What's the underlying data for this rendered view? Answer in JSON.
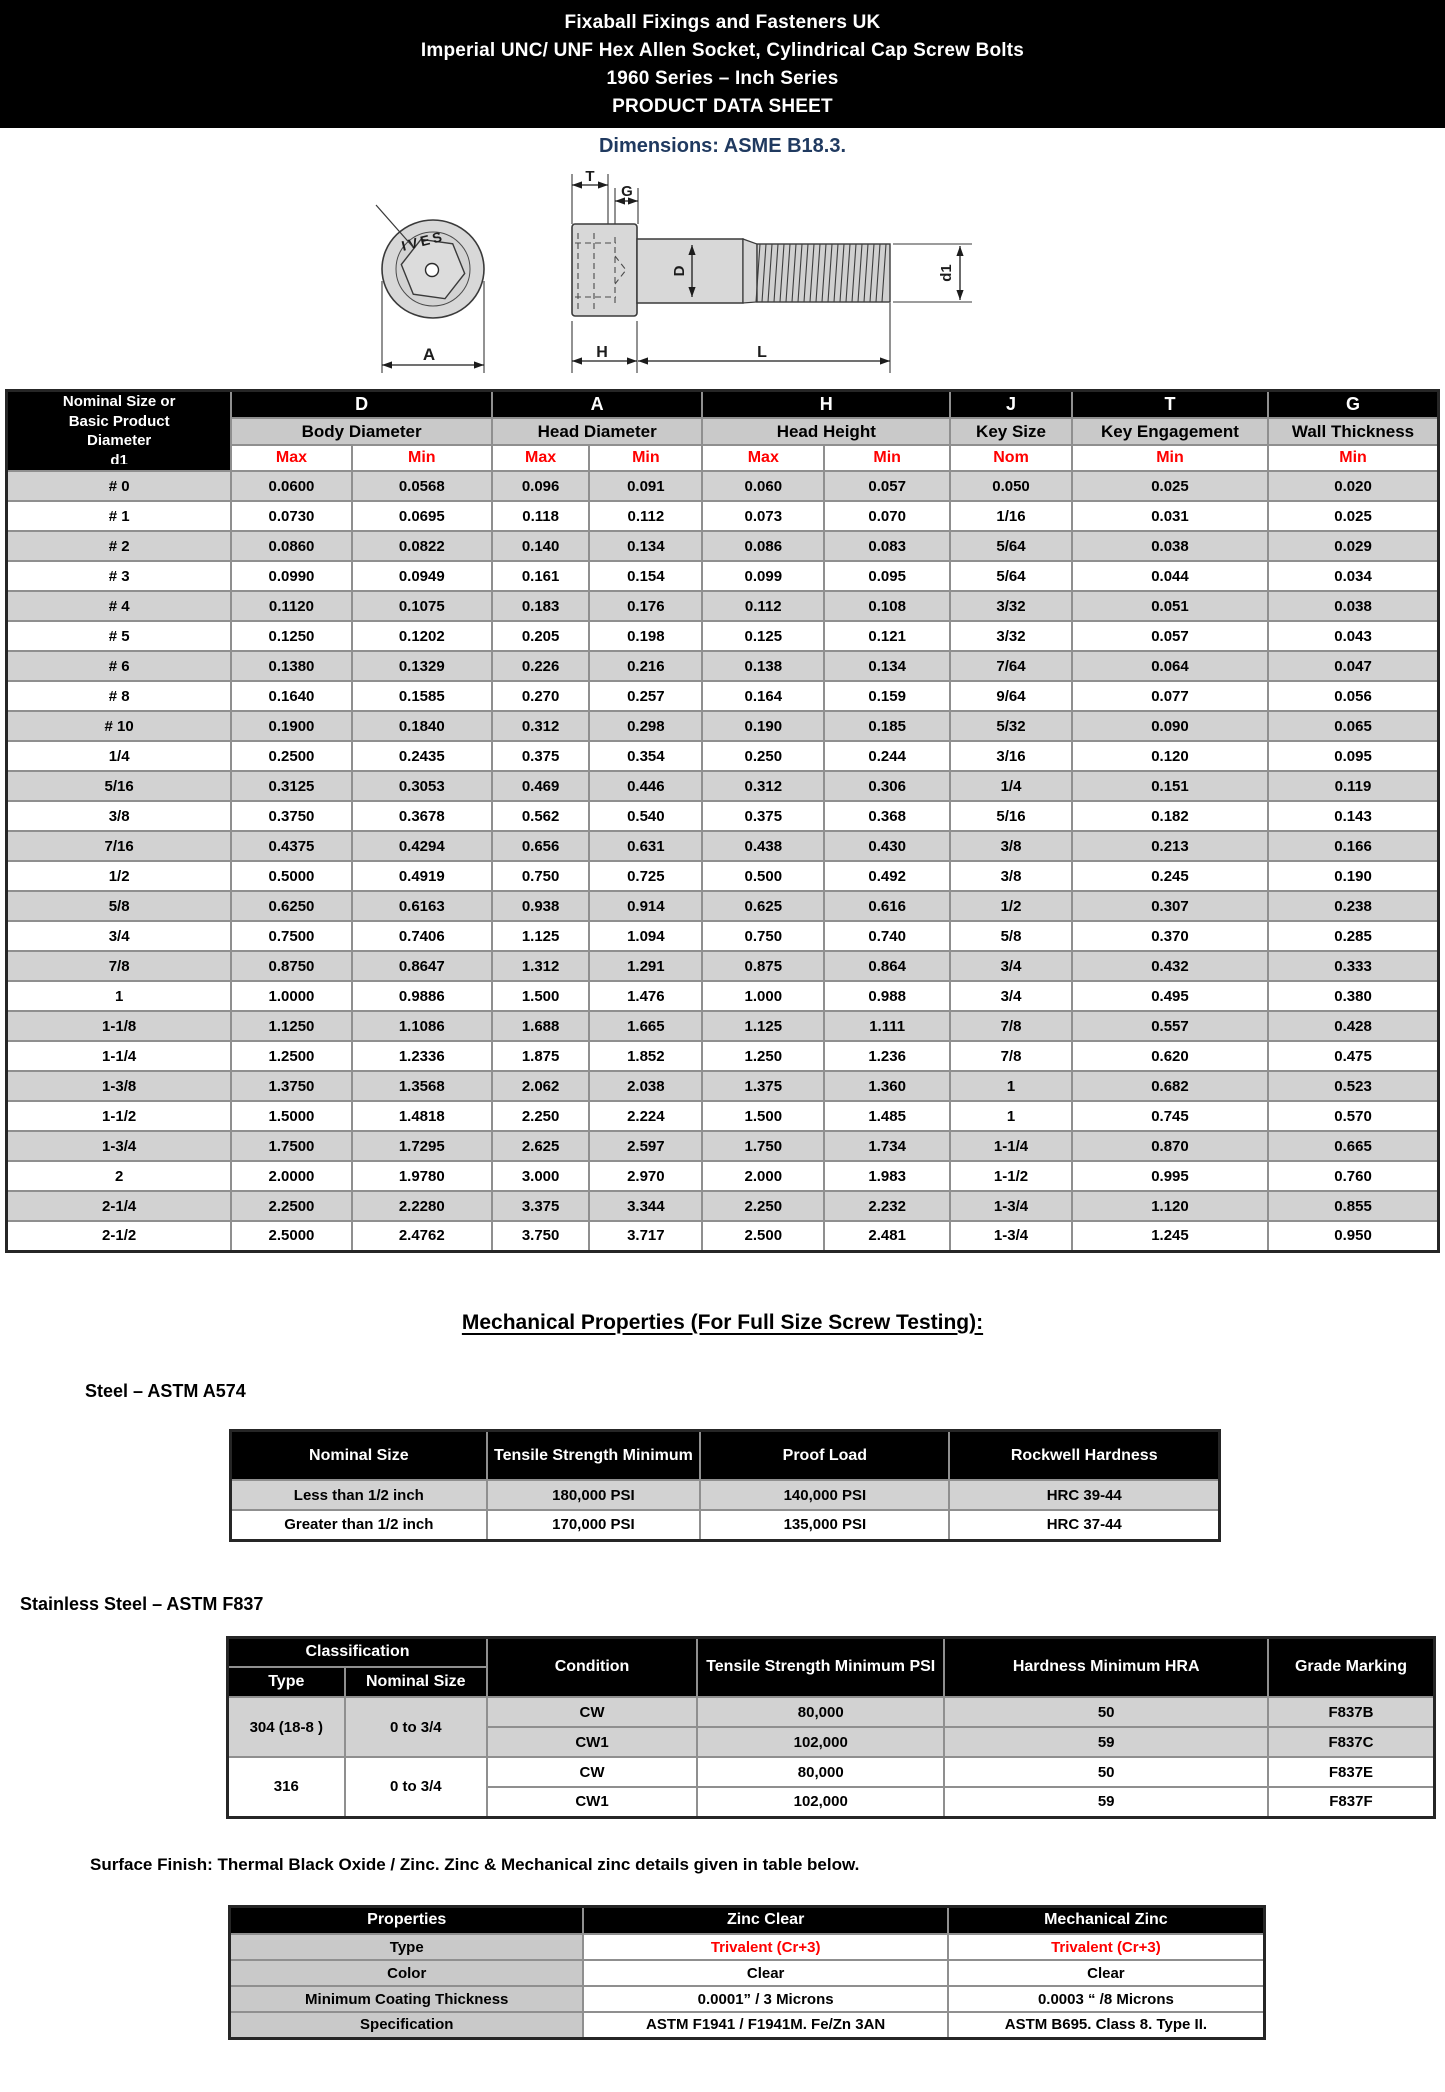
{
  "title_block": {
    "line1": "Fixaball Fixings and Fasteners UK",
    "line2": "Imperial UNC/ UNF Hex Allen Socket, Cylindrical Cap Screw Bolts",
    "line3": "1960 Series – Inch Series",
    "line4": "PRODUCT DATA SHEET"
  },
  "dimensions_note": "Dimensions: ASME B18.3.",
  "drawing": {
    "socket_marking": "IVES",
    "labels": {
      "A": "A",
      "T": "T",
      "G": "G",
      "D": "D",
      "d1": "d1",
      "H": "H",
      "L": "L"
    }
  },
  "dimension_table": {
    "row_header": {
      "line1": "Nominal Size or",
      "line2": "Basic Product",
      "line3": "Diameter",
      "line4": "d1"
    },
    "groups": [
      {
        "code": "D",
        "name": "Body Diameter",
        "subs": [
          "Max",
          "Min"
        ]
      },
      {
        "code": "A",
        "name": "Head Diameter",
        "subs": [
          "Max",
          "Min"
        ]
      },
      {
        "code": "H",
        "name": "Head Height",
        "subs": [
          "Max",
          "Min"
        ]
      },
      {
        "code": "J",
        "name": "Key Size",
        "subs": [
          "Nom"
        ]
      },
      {
        "code": "T",
        "name": "Key Engagement",
        "subs": [
          "Min"
        ]
      },
      {
        "code": "G",
        "name": "Wall Thickness",
        "subs": [
          "Min"
        ]
      }
    ],
    "rows": [
      [
        "# 0",
        "0.0600",
        "0.0568",
        "0.096",
        "0.091",
        "0.060",
        "0.057",
        "0.050",
        "0.025",
        "0.020"
      ],
      [
        "# 1",
        "0.0730",
        "0.0695",
        "0.118",
        "0.112",
        "0.073",
        "0.070",
        "1/16",
        "0.031",
        "0.025"
      ],
      [
        "# 2",
        "0.0860",
        "0.0822",
        "0.140",
        "0.134",
        "0.086",
        "0.083",
        "5/64",
        "0.038",
        "0.029"
      ],
      [
        "# 3",
        "0.0990",
        "0.0949",
        "0.161",
        "0.154",
        "0.099",
        "0.095",
        "5/64",
        "0.044",
        "0.034"
      ],
      [
        "# 4",
        "0.1120",
        "0.1075",
        "0.183",
        "0.176",
        "0.112",
        "0.108",
        "3/32",
        "0.051",
        "0.038"
      ],
      [
        "# 5",
        "0.1250",
        "0.1202",
        "0.205",
        "0.198",
        "0.125",
        "0.121",
        "3/32",
        "0.057",
        "0.043"
      ],
      [
        "# 6",
        "0.1380",
        "0.1329",
        "0.226",
        "0.216",
        "0.138",
        "0.134",
        "7/64",
        "0.064",
        "0.047"
      ],
      [
        "# 8",
        "0.1640",
        "0.1585",
        "0.270",
        "0.257",
        "0.164",
        "0.159",
        "9/64",
        "0.077",
        "0.056"
      ],
      [
        "# 10",
        "0.1900",
        "0.1840",
        "0.312",
        "0.298",
        "0.190",
        "0.185",
        "5/32",
        "0.090",
        "0.065"
      ],
      [
        "1/4",
        "0.2500",
        "0.2435",
        "0.375",
        "0.354",
        "0.250",
        "0.244",
        "3/16",
        "0.120",
        "0.095"
      ],
      [
        "5/16",
        "0.3125",
        "0.3053",
        "0.469",
        "0.446",
        "0.312",
        "0.306",
        "1/4",
        "0.151",
        "0.119"
      ],
      [
        "3/8",
        "0.3750",
        "0.3678",
        "0.562",
        "0.540",
        "0.375",
        "0.368",
        "5/16",
        "0.182",
        "0.143"
      ],
      [
        "7/16",
        "0.4375",
        "0.4294",
        "0.656",
        "0.631",
        "0.438",
        "0.430",
        "3/8",
        "0.213",
        "0.166"
      ],
      [
        "1/2",
        "0.5000",
        "0.4919",
        "0.750",
        "0.725",
        "0.500",
        "0.492",
        "3/8",
        "0.245",
        "0.190"
      ],
      [
        "5/8",
        "0.6250",
        "0.6163",
        "0.938",
        "0.914",
        "0.625",
        "0.616",
        "1/2",
        "0.307",
        "0.238"
      ],
      [
        "3/4",
        "0.7500",
        "0.7406",
        "1.125",
        "1.094",
        "0.750",
        "0.740",
        "5/8",
        "0.370",
        "0.285"
      ],
      [
        "7/8",
        "0.8750",
        "0.8647",
        "1.312",
        "1.291",
        "0.875",
        "0.864",
        "3/4",
        "0.432",
        "0.333"
      ],
      [
        "1",
        "1.0000",
        "0.9886",
        "1.500",
        "1.476",
        "1.000",
        "0.988",
        "3/4",
        "0.495",
        "0.380"
      ],
      [
        "1-1/8",
        "1.1250",
        "1.1086",
        "1.688",
        "1.665",
        "1.125",
        "1.111",
        "7/8",
        "0.557",
        "0.428"
      ],
      [
        "1-1/4",
        "1.2500",
        "1.2336",
        "1.875",
        "1.852",
        "1.250",
        "1.236",
        "7/8",
        "0.620",
        "0.475"
      ],
      [
        "1-3/8",
        "1.3750",
        "1.3568",
        "2.062",
        "2.038",
        "1.375",
        "1.360",
        "1",
        "0.682",
        "0.523"
      ],
      [
        "1-1/2",
        "1.5000",
        "1.4818",
        "2.250",
        "2.224",
        "1.500",
        "1.485",
        "1",
        "0.745",
        "0.570"
      ],
      [
        "1-3/4",
        "1.7500",
        "1.7295",
        "2.625",
        "2.597",
        "1.750",
        "1.734",
        "1-1/4",
        "0.870",
        "0.665"
      ],
      [
        "2",
        "2.0000",
        "1.9780",
        "3.000",
        "2.970",
        "2.000",
        "1.983",
        "1-1/2",
        "0.995",
        "0.760"
      ],
      [
        "2-1/4",
        "2.2500",
        "2.2280",
        "3.375",
        "3.344",
        "2.250",
        "2.232",
        "1-3/4",
        "1.120",
        "0.855"
      ],
      [
        "2-1/2",
        "2.5000",
        "2.4762",
        "3.750",
        "3.717",
        "2.500",
        "2.481",
        "1-3/4",
        "1.245",
        "0.950"
      ]
    ]
  },
  "mechanical": {
    "heading": "Mechanical Properties (For Full Size Screw Testing):",
    "steel_heading": "Steel – ASTM A574",
    "steel_table": {
      "headers": [
        "Nominal Size",
        "Tensile Strength\nMinimum",
        "Proof Load",
        "Rockwell Hardness"
      ],
      "rows": [
        [
          "Less than 1/2 inch",
          "180,000 PSI",
          "140,000 PSI",
          "HRC 39-44"
        ],
        [
          "Greater than 1/2 inch",
          "170,000 PSI",
          "135,000 PSI",
          "HRC 37-44"
        ]
      ]
    },
    "stainless_heading": "Stainless Steel – ASTM F837",
    "stainless_table": {
      "classification_header": "Classification",
      "sub_headers": [
        "Type",
        "Nominal Size"
      ],
      "headers": [
        "Condition",
        "Tensile Strength\nMinimum PSI",
        "Hardness Minimum HRA",
        "Grade Marking"
      ],
      "groups": [
        {
          "type": "304 (18-8 )",
          "nominal_size": "0 to 3/4",
          "rows": [
            [
              "CW",
              "80,000",
              "50",
              "F837B"
            ],
            [
              "CW1",
              "102,000",
              "59",
              "F837C"
            ]
          ]
        },
        {
          "type": "316",
          "nominal_size": "0 to 3/4",
          "rows": [
            [
              "CW",
              "80,000",
              "50",
              "F837E"
            ],
            [
              "CW1",
              "102,000",
              "59",
              "F837F"
            ]
          ]
        }
      ]
    }
  },
  "surface_finish": {
    "note": "Surface Finish: Thermal Black Oxide / Zinc. Zinc & Mechanical zinc details given in table below.",
    "table": {
      "headers": [
        "Properties",
        "Zinc Clear",
        "Mechanical Zinc"
      ],
      "rows": [
        {
          "label": "Type",
          "values": [
            "Trivalent (Cr+3)",
            "Trivalent (Cr+3)"
          ],
          "highlight": true
        },
        {
          "label": "Color",
          "values": [
            "Clear",
            "Clear"
          ],
          "highlight": false
        },
        {
          "label": "Minimum Coating Thickness",
          "values": [
            "0.0001” / 3 Microns",
            "0.0003 “ /8 Microns"
          ],
          "highlight": false
        },
        {
          "label": "Specification",
          "values": [
            "ASTM F1941 / F1941M.\nFe/Zn 3AN",
            "ASTM B695. Class 8. Type II."
          ],
          "highlight": false
        }
      ]
    }
  },
  "colors": {
    "accent_red": "#ff0000",
    "stripe_gray": "#d2d2d2",
    "header_black": "#000000",
    "note_blue": "#203a60",
    "drawing_fill": "#d8d8d8"
  }
}
